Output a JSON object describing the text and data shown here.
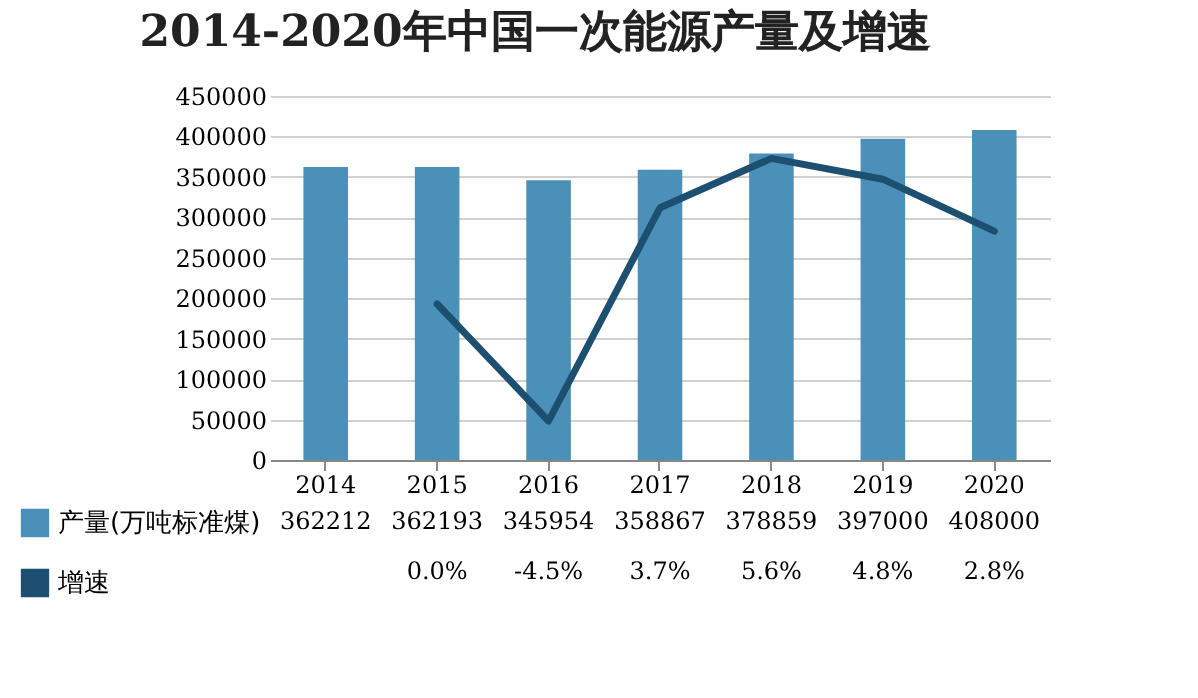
{
  "chart_data": {
    "type": "bar",
    "title": "2014-2020年中国一次能源产量及增速",
    "categories": [
      "2014",
      "2015",
      "2016",
      "2017",
      "2018",
      "2019",
      "2020"
    ],
    "series": [
      {
        "name": "产量(万吨标准煤)",
        "color": "#4a90b8",
        "values": [
          362212,
          362193,
          345954,
          358867,
          378859,
          397000,
          408000
        ],
        "value_labels": [
          "362212",
          "362193",
          "345954",
          "358867",
          "378859",
          "397000",
          "408000"
        ]
      },
      {
        "name": "增速",
        "type": "line",
        "axis": "y2",
        "color": "#1c4f70",
        "values": [
          null,
          0.0,
          -4.5,
          3.7,
          5.6,
          4.8,
          2.8
        ],
        "value_labels": [
          null,
          "0.0%",
          "-4.5%",
          "3.7%",
          "5.6%",
          "4.8%",
          "2.8%"
        ]
      }
    ],
    "ylim": [
      0,
      450000
    ],
    "yticks": [
      0,
      50000,
      100000,
      150000,
      200000,
      250000,
      300000,
      350000,
      400000,
      450000
    ],
    "y2lim": [
      -6,
      8
    ],
    "grid": "y",
    "legend": "bottom left"
  }
}
